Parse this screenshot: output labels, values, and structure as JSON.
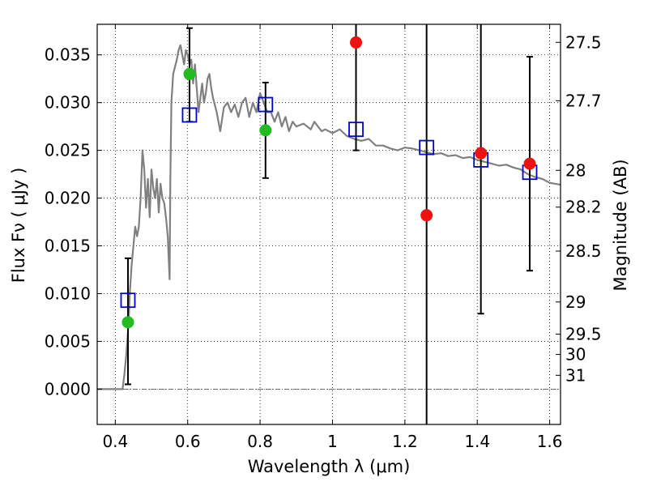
{
  "chart_data": {
    "type": "scatter",
    "xlabel": "Wavelength  λ (μm)",
    "ylabel": "Flux  Fν ( μJy )",
    "y2label": "Magnitude (AB)",
    "xlim": [
      0.35,
      1.63
    ],
    "ylim": [
      -0.0037,
      0.0382
    ],
    "grid": true,
    "x_ticks": [
      0.4,
      0.6,
      0.8,
      1.0,
      1.2,
      1.4,
      1.6
    ],
    "x_tick_labels": [
      "0.4",
      "0.6",
      "0.8",
      "1",
      "1.2",
      "1.4",
      "1.6"
    ],
    "y_ticks": [
      0.0,
      0.005,
      0.01,
      0.015,
      0.02,
      0.025,
      0.03,
      0.035
    ],
    "y_tick_labels": [
      "0.000",
      "0.005",
      "0.010",
      "0.015",
      "0.020",
      "0.025",
      "0.030",
      "0.035"
    ],
    "magnitude_ticks": [
      {
        "label": "27.5",
        "mag": 27.5
      },
      {
        "label": "27.7",
        "mag": 27.7
      },
      {
        "label": "28",
        "mag": 28.0
      },
      {
        "label": "28.2",
        "mag": 28.2
      },
      {
        "label": "28.5",
        "mag": 28.5
      },
      {
        "label": "29",
        "mag": 29.0
      },
      {
        "label": "29.5",
        "mag": 29.5
      },
      {
        "label": "30",
        "mag": 30.0
      },
      {
        "label": "31",
        "mag": 31.0
      }
    ],
    "series": [
      {
        "name": "model_spectrum",
        "kind": "line",
        "color": "#808080",
        "x": [
          0.35,
          0.37,
          0.39,
          0.4,
          0.41,
          0.42,
          0.425,
          0.43,
          0.435,
          0.438,
          0.44,
          0.445,
          0.45,
          0.455,
          0.46,
          0.465,
          0.47,
          0.475,
          0.48,
          0.485,
          0.49,
          0.495,
          0.5,
          0.505,
          0.51,
          0.515,
          0.52,
          0.525,
          0.53,
          0.535,
          0.54,
          0.545,
          0.55,
          0.552,
          0.555,
          0.56,
          0.57,
          0.575,
          0.58,
          0.585,
          0.59,
          0.595,
          0.6,
          0.605,
          0.61,
          0.615,
          0.62,
          0.63,
          0.64,
          0.645,
          0.65,
          0.655,
          0.66,
          0.665,
          0.67,
          0.68,
          0.69,
          0.7,
          0.71,
          0.72,
          0.73,
          0.74,
          0.75,
          0.76,
          0.77,
          0.78,
          0.79,
          0.8,
          0.81,
          0.82,
          0.83,
          0.84,
          0.85,
          0.86,
          0.87,
          0.88,
          0.89,
          0.9,
          0.92,
          0.94,
          0.95,
          0.96,
          0.97,
          0.98,
          1.0,
          1.02,
          1.04,
          1.06,
          1.08,
          1.1,
          1.12,
          1.14,
          1.16,
          1.18,
          1.2,
          1.22,
          1.24,
          1.26,
          1.28,
          1.3,
          1.32,
          1.34,
          1.36,
          1.38,
          1.4,
          1.42,
          1.44,
          1.46,
          1.48,
          1.5,
          1.52,
          1.54,
          1.56,
          1.58,
          1.6,
          1.63
        ],
        "y": [
          0.0,
          0.0,
          0.0,
          0.0,
          0.0,
          0.0,
          0.0015,
          0.0035,
          0.006,
          0.008,
          0.01,
          0.013,
          0.015,
          0.017,
          0.016,
          0.017,
          0.02,
          0.025,
          0.023,
          0.019,
          0.022,
          0.018,
          0.023,
          0.021,
          0.02,
          0.022,
          0.0185,
          0.0215,
          0.02,
          0.0195,
          0.018,
          0.016,
          0.0115,
          0.022,
          0.03,
          0.033,
          0.0345,
          0.0355,
          0.036,
          0.035,
          0.034,
          0.0355,
          0.035,
          0.034,
          0.0345,
          0.032,
          0.034,
          0.029,
          0.032,
          0.03,
          0.031,
          0.0325,
          0.033,
          0.0315,
          0.0305,
          0.029,
          0.027,
          0.0295,
          0.03,
          0.029,
          0.0298,
          0.0285,
          0.03,
          0.0305,
          0.0285,
          0.03,
          0.029,
          0.031,
          0.03,
          0.029,
          0.029,
          0.028,
          0.029,
          0.0275,
          0.0285,
          0.027,
          0.028,
          0.0275,
          0.0278,
          0.0272,
          0.028,
          0.0275,
          0.027,
          0.0272,
          0.0268,
          0.0272,
          0.0265,
          0.0262,
          0.026,
          0.0262,
          0.0255,
          0.0255,
          0.0252,
          0.025,
          0.0253,
          0.0252,
          0.025,
          0.0248,
          0.0246,
          0.0247,
          0.0244,
          0.0245,
          0.0242,
          0.0243,
          0.024,
          0.0238,
          0.0236,
          0.0234,
          0.0235,
          0.0232,
          0.023,
          0.0225,
          0.0222,
          0.022,
          0.0216,
          0.0214
        ]
      },
      {
        "name": "model_photometry",
        "kind": "open-square",
        "color": "#0000cc",
        "x": [
          0.435,
          0.605,
          0.815,
          1.065,
          1.26,
          1.41,
          1.545
        ],
        "y": [
          0.0093,
          0.0287,
          0.0298,
          0.0272,
          0.0253,
          0.024,
          0.0227
        ]
      },
      {
        "name": "detections",
        "kind": "filled-circle",
        "color": "#22bb22",
        "x": [
          0.435,
          0.605,
          0.815
        ],
        "y": [
          0.007,
          0.033,
          0.0271
        ],
        "err_low": [
          0.0005,
          0.028,
          0.0221
        ],
        "err_high": [
          0.0137,
          0.0378,
          0.0321
        ]
      },
      {
        "name": "non_detections",
        "kind": "filled-circle",
        "color": "#ee1111",
        "x": [
          1.065,
          1.26,
          1.41,
          1.545
        ],
        "y": [
          0.0363,
          0.0182,
          0.0247,
          0.0236
        ],
        "err_low": [
          0.025,
          -0.0037,
          0.0079,
          0.0124
        ],
        "err_high": [
          0.0382,
          0.0382,
          0.0382,
          0.0348
        ]
      }
    ]
  }
}
